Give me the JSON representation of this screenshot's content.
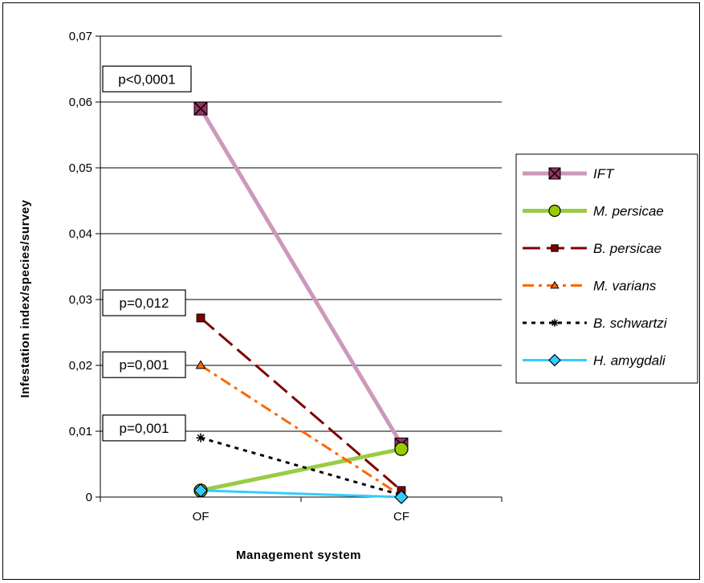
{
  "chart_data": {
    "type": "line",
    "xlabel": "Management system",
    "ylabel": "Infestation index/species/survey",
    "categories": [
      "OF",
      "CF"
    ],
    "ylim": [
      0,
      0.07
    ],
    "yticks": [
      "0",
      "0,01",
      "0,02",
      "0,03",
      "0,04",
      "0,05",
      "0,06",
      "0,07"
    ],
    "grid": true,
    "legend_position": "right",
    "series": [
      {
        "name": "IFT",
        "values": [
          0.059,
          0.008
        ],
        "color": "#cc99bb",
        "marker": "x-square",
        "style": "thick-solid"
      },
      {
        "name": "M. persicae",
        "values": [
          0.001,
          0.0073
        ],
        "color": "#99cc44",
        "marker": "circle",
        "style": "thick-solid"
      },
      {
        "name": "B. persicae",
        "values": [
          0.0272,
          0.001
        ],
        "color": "#800000",
        "marker": "square",
        "style": "long-dash"
      },
      {
        "name": "M. varians",
        "values": [
          0.02,
          0.0002
        ],
        "color": "#ff6600",
        "marker": "triangle",
        "style": "dash-dot"
      },
      {
        "name": "B. schwartzi",
        "values": [
          0.009,
          0.0003
        ],
        "color": "#000000",
        "marker": "star",
        "style": "dotted"
      },
      {
        "name": "H. amygdali",
        "values": [
          0.001,
          0.0
        ],
        "color": "#33ccff",
        "marker": "diamond",
        "style": "solid"
      }
    ],
    "annotations": [
      {
        "text": "p<0,0001",
        "y": 0.0635
      },
      {
        "text": "p=0,012",
        "y": 0.0295
      },
      {
        "text": "p=0,001",
        "y": 0.0201
      },
      {
        "text": "p=0,001",
        "y": 0.0105
      }
    ]
  }
}
